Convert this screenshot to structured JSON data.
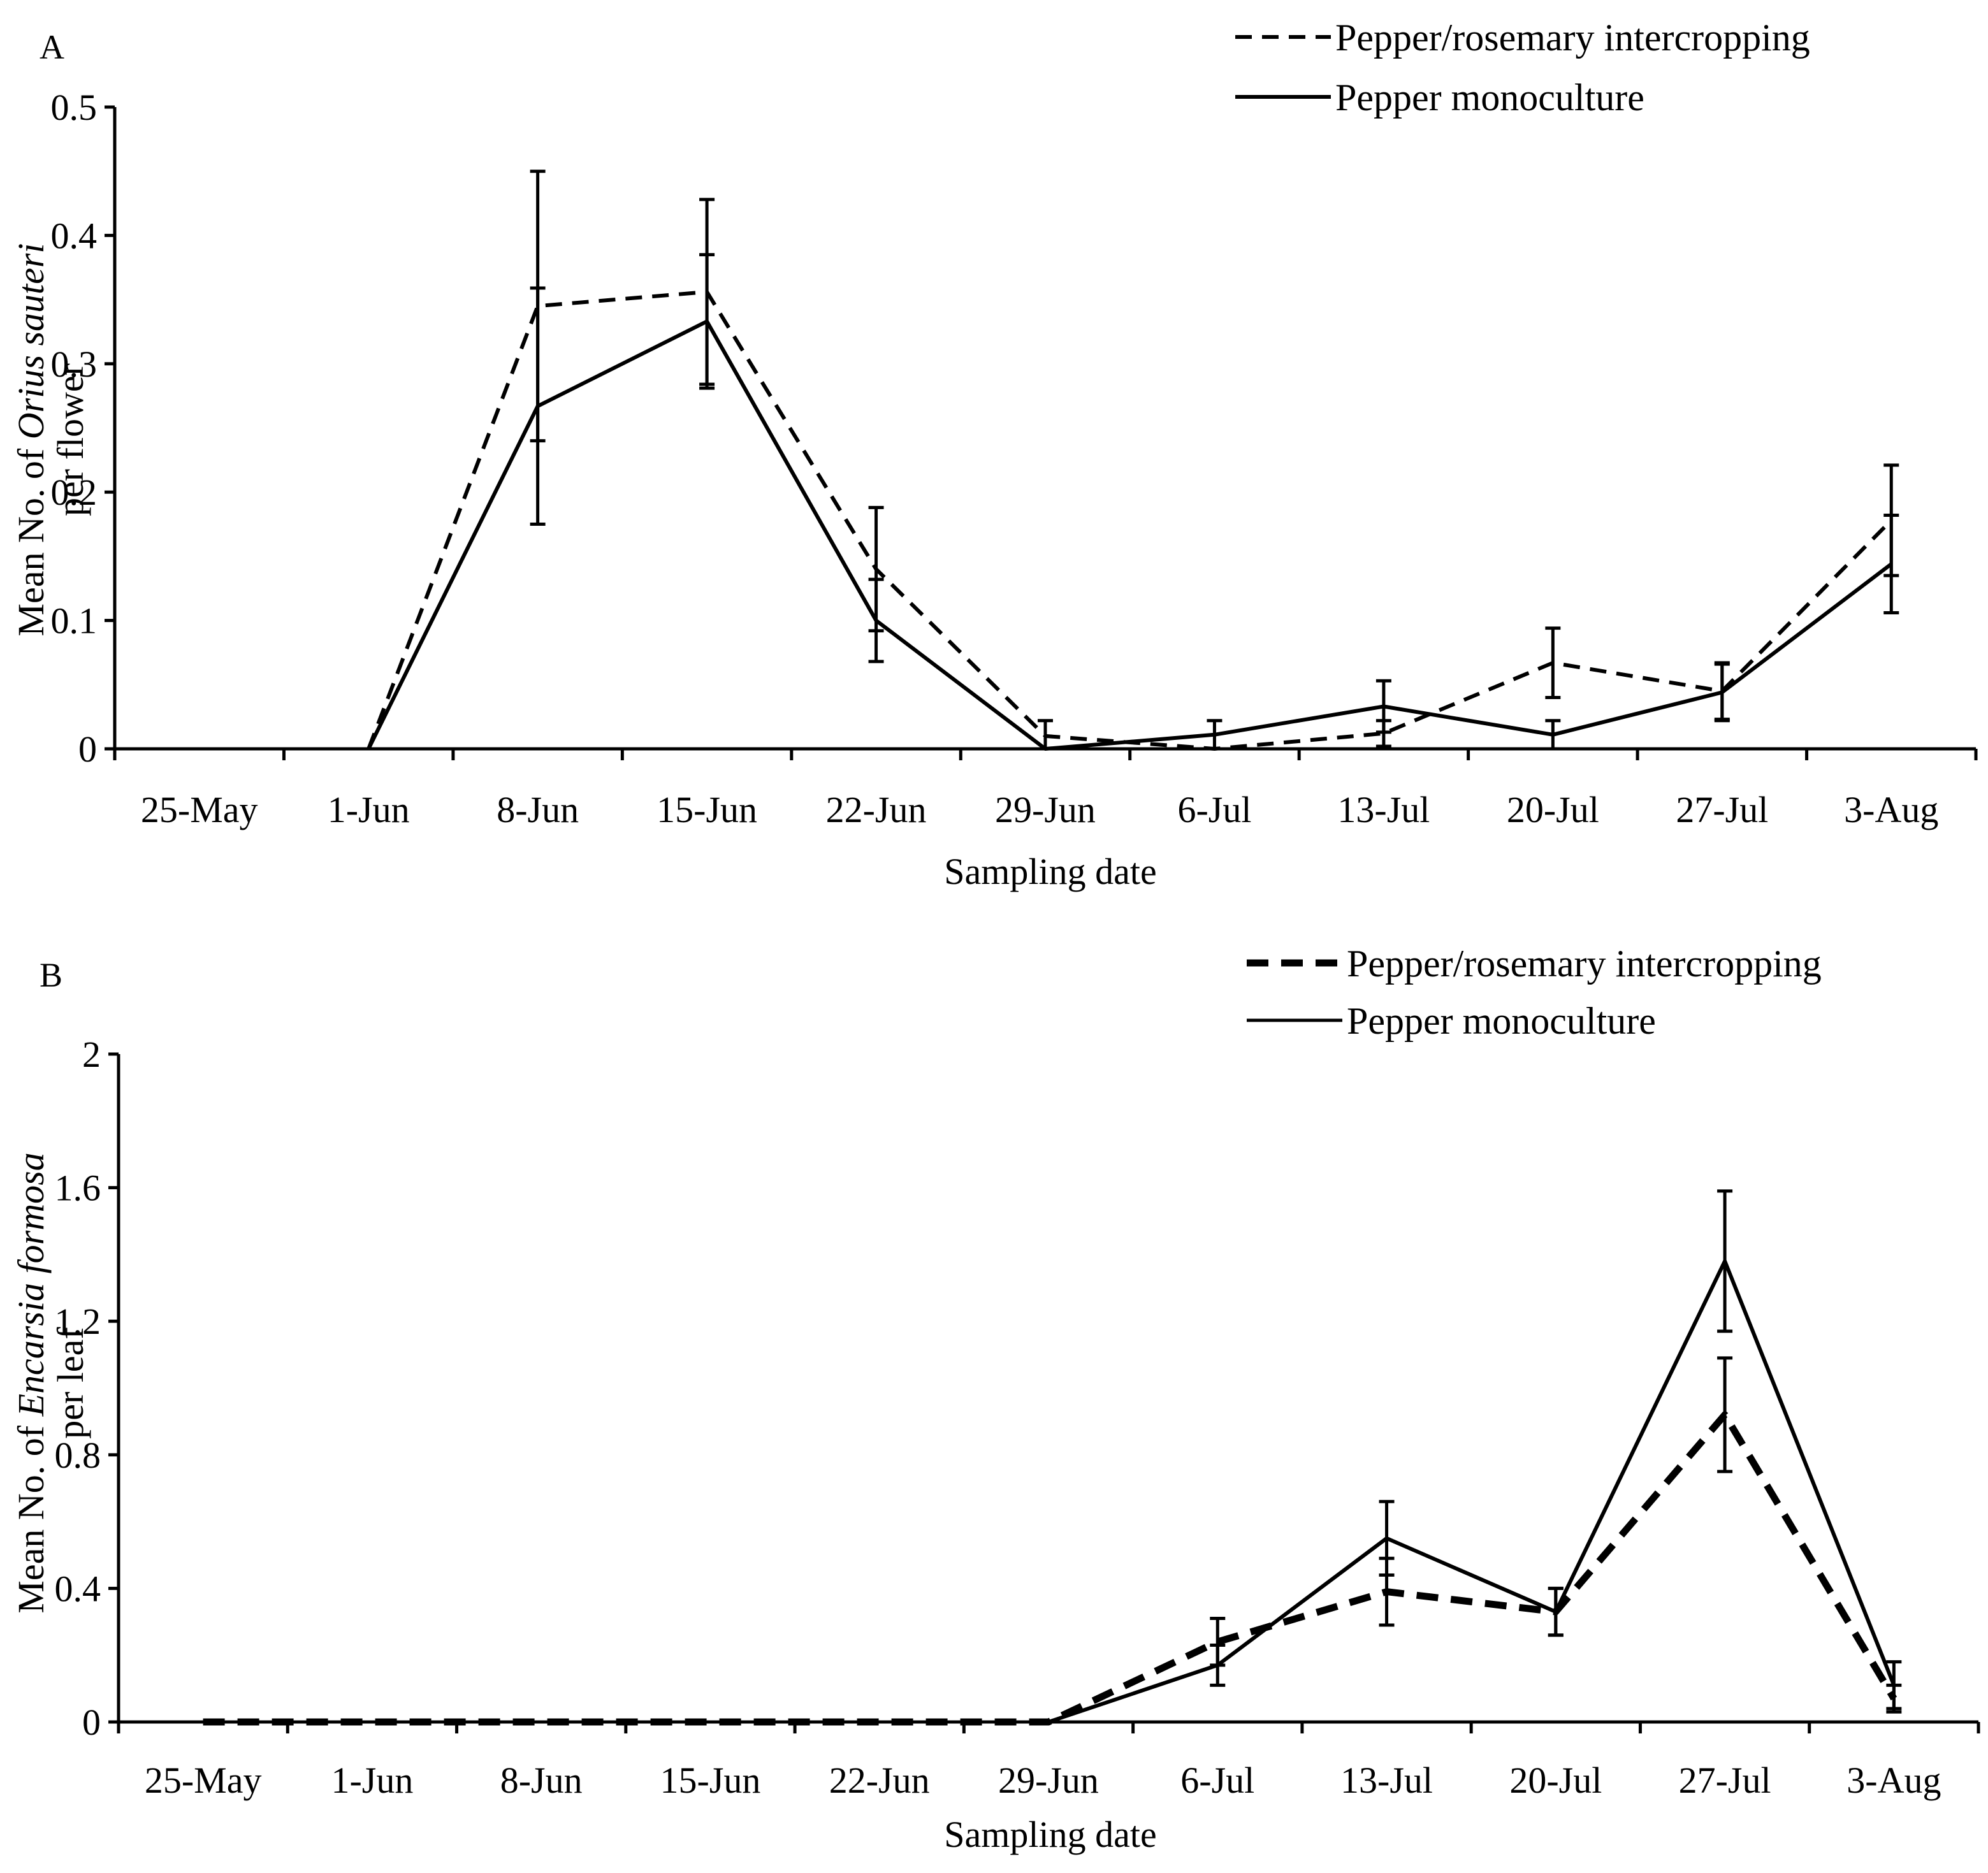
{
  "chart_data": [
    {
      "type": "line",
      "panel_label": "A",
      "title": "",
      "xlabel": "Sampling date",
      "ylabel_parts": [
        "Mean No. of ",
        "Orius sauteri"
      ],
      "ylabel_line2": "per flower",
      "categories": [
        "25-May",
        "1-Jun",
        "8-Jun",
        "15-Jun",
        "22-Jun",
        "29-Jun",
        "6-Jul",
        "13-Jul",
        "20-Jul",
        "27-Jul",
        "3-Aug"
      ],
      "ylim": [
        0,
        0.5
      ],
      "yticks": [
        0,
        0.1,
        0.2,
        0.3,
        0.4,
        0.5
      ],
      "ytick_labels": [
        "0",
        "0.1",
        "0.2",
        "0.3",
        "0.4",
        "0.5"
      ],
      "legend_position": "top-right",
      "series": [
        {
          "name": "Pepper/rosemary intercropping",
          "style": "dashed",
          "x": [
            1.5,
            2.5,
            3.5,
            4.5,
            5.5,
            6.5,
            7.5,
            8.5,
            9.5,
            10.5
          ],
          "values": [
            0,
            0.345,
            0.356,
            0.14,
            0.01,
            0,
            0.012,
            0.067,
            0.045,
            0.178
          ],
          "errors": [
            null,
            0.105,
            0.072,
            0.048,
            0.012,
            null,
            0.01,
            0.027,
            0.022,
            0.043
          ]
        },
        {
          "name": "Pepper monoculture",
          "style": "solid",
          "x": [
            1.5,
            2.5,
            3.5,
            4.5,
            5.5,
            6.5,
            7.5,
            8.5,
            9.5,
            10.5
          ],
          "values": [
            0,
            0.267,
            0.333,
            0.1,
            0,
            0.011,
            0.033,
            0.011,
            0.044,
            0.144
          ],
          "errors": [
            null,
            0.092,
            0.052,
            0.032,
            null,
            0.011,
            0.02,
            0.011,
            0.022,
            0.038
          ]
        }
      ]
    },
    {
      "type": "line",
      "panel_label": "B",
      "title": "",
      "xlabel": "Sampling date",
      "ylabel_parts": [
        "Mean No. of ",
        "Encarsia formosa"
      ],
      "ylabel_line2": "per leaf",
      "categories": [
        "25-May",
        "1-Jun",
        "8-Jun",
        "15-Jun",
        "22-Jun",
        "29-Jun",
        "6-Jul",
        "13-Jul",
        "20-Jul",
        "27-Jul",
        "3-Aug"
      ],
      "ylim": [
        0,
        2
      ],
      "yticks": [
        0,
        0.4,
        0.8,
        1.2,
        1.6,
        2
      ],
      "ytick_labels": [
        "0",
        "0.4",
        "0.8",
        "1.2",
        "1.6",
        "2"
      ],
      "legend_position": "top-right",
      "series": [
        {
          "name": "Pepper/rosemary intercropping",
          "style": "dashed-bold",
          "x": [
            0.5,
            1.5,
            2.5,
            3.5,
            4.5,
            5.5,
            6.5,
            7.5,
            8.5,
            9.5,
            10.5
          ],
          "values": [
            0,
            0,
            0,
            0,
            0,
            0,
            0.24,
            0.39,
            0.33,
            0.92,
            0.07
          ],
          "errors": [
            null,
            null,
            null,
            null,
            null,
            null,
            0.07,
            0.1,
            0.07,
            0.17,
            0.04
          ]
        },
        {
          "name": "Pepper monoculture",
          "style": "solid",
          "x": [
            5.5,
            6.5,
            7.5,
            8.5,
            9.5,
            10.5
          ],
          "values": [
            0,
            0.17,
            0.55,
            0.33,
            1.38,
            0.11
          ],
          "errors": [
            null,
            0.06,
            0.11,
            0.07,
            0.21,
            0.07
          ]
        }
      ]
    }
  ]
}
